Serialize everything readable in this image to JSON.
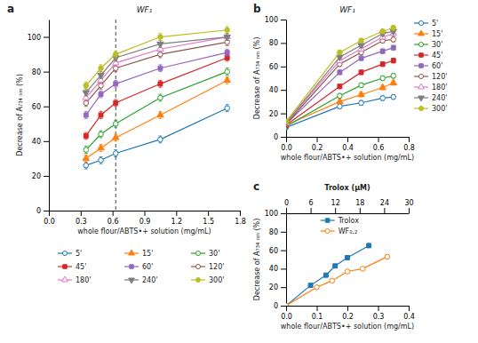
{
  "chart_data": [
    {
      "type": "line",
      "title": "WF₁",
      "panel_label": "a",
      "xlabel": "whole flour/ABTS•+ solution (mg/mL)",
      "ylabel": "Decrease of A₇₃₄ ₙₘ (%)",
      "xlim": [
        0.0,
        1.8
      ],
      "ylim": [
        0,
        110
      ],
      "xticks": [
        {
          "value": 0.0,
          "label": "0.0"
        },
        0.3,
        0.6,
        0.9,
        1.2,
        1.5,
        1.8
      ],
      "yticks": [
        0,
        20,
        40,
        60,
        80,
        100
      ],
      "grid": false,
      "legend": "bottom",
      "reference_lines": [
        {
          "x": 0.63,
          "line_style": "dashed"
        }
      ],
      "x": [
        0.35,
        0.49,
        0.63,
        1.05,
        1.68
      ],
      "series": [
        {
          "name": "5'",
          "marker": "circle-open",
          "values": [
            26,
            29,
            33,
            41,
            59
          ],
          "errors": [
            2.0,
            2.0,
            2.0,
            2.0,
            2.0
          ]
        },
        {
          "name": "15'",
          "marker": "triangle-up",
          "values": [
            30,
            36,
            42,
            55,
            75
          ],
          "errors": [
            2.0,
            2.0,
            2.0,
            2.0,
            2.0
          ]
        },
        {
          "name": "30'",
          "marker": "circle-open",
          "values": [
            35,
            44,
            50,
            65,
            80
          ],
          "errors": [
            2.0,
            2.0,
            2.0,
            2.0,
            2.0
          ]
        },
        {
          "name": "45'",
          "marker": "square",
          "values": [
            43,
            55,
            62,
            73,
            88
          ],
          "errors": [
            2.0,
            2.0,
            2.0,
            2.0,
            2.0
          ]
        },
        {
          "name": "60'",
          "marker": "square",
          "values": [
            55,
            67,
            73,
            82,
            91
          ],
          "errors": [
            2.0,
            2.0,
            2.0,
            2.0,
            2.0
          ]
        },
        {
          "name": "120'",
          "marker": "circle-open",
          "values": [
            62,
            72,
            82,
            90,
            97
          ],
          "errors": [
            2.0,
            2.0,
            2.0,
            2.0,
            2.0
          ]
        },
        {
          "name": "180'",
          "marker": "triangle-up-open",
          "values": [
            65,
            75,
            85,
            93,
            100
          ],
          "errors": [
            2.0,
            2.0,
            2.0,
            2.0,
            2.0
          ]
        },
        {
          "name": "240'",
          "marker": "triangle-down",
          "values": [
            68,
            78,
            88,
            96,
            100
          ],
          "errors": [
            2.0,
            2.0,
            2.0,
            2.0,
            2.0
          ]
        },
        {
          "name": "300'",
          "marker": "circle",
          "values": [
            72,
            82,
            90,
            100,
            104
          ],
          "errors": [
            2.0,
            2.0,
            2.0,
            2.0,
            2.0
          ]
        }
      ]
    },
    {
      "type": "line",
      "title": "WF₁",
      "panel_label": "b",
      "xlabel": "whole flour/ABTS•+ solution (mg/mL)",
      "ylabel": "Decrease of A₇₃₄ ₙₘ (%)",
      "xlim": [
        0.0,
        0.8
      ],
      "ylim": [
        0,
        100
      ],
      "xticks": [
        {
          "value": 0.0,
          "label": "0.0"
        },
        0.2,
        0.4,
        0.6,
        0.8
      ],
      "yticks": [
        0,
        20,
        40,
        60,
        80,
        100
      ],
      "grid": false,
      "legend": "right",
      "x": [
        0.0,
        0.35,
        0.49,
        0.63,
        0.7
      ],
      "series": [
        {
          "name": "5'",
          "marker": "circle-open",
          "values": [
            8,
            26,
            29,
            33,
            34
          ],
          "errors": [
            2.0,
            2.0,
            2.0,
            2.0,
            2.0
          ]
        },
        {
          "name": "15'",
          "marker": "triangle-up",
          "values": [
            10,
            30,
            36,
            42,
            46
          ],
          "errors": [
            2.0,
            2.0,
            2.0,
            2.0,
            2.0
          ]
        },
        {
          "name": "30'",
          "marker": "circle-open",
          "values": [
            9,
            35,
            44,
            50,
            52
          ],
          "errors": [
            2.0,
            2.0,
            2.0,
            2.0,
            2.0
          ]
        },
        {
          "name": "45'",
          "marker": "square",
          "values": [
            10,
            43,
            55,
            62,
            65
          ],
          "errors": [
            2.0,
            2.0,
            2.0,
            2.0,
            2.0
          ]
        },
        {
          "name": "60'",
          "marker": "square",
          "values": [
            11,
            55,
            67,
            73,
            76
          ],
          "errors": [
            2.0,
            2.0,
            2.0,
            2.0,
            2.0
          ]
        },
        {
          "name": "120'",
          "marker": "circle-open",
          "values": [
            11,
            62,
            72,
            82,
            83
          ],
          "errors": [
            2.0,
            2.0,
            2.0,
            2.0,
            2.0
          ]
        },
        {
          "name": "180'",
          "marker": "triangle-up-open",
          "values": [
            12,
            65,
            75,
            85,
            88
          ],
          "errors": [
            2.0,
            2.0,
            2.0,
            2.0,
            2.0
          ]
        },
        {
          "name": "240'",
          "marker": "triangle-down",
          "values": [
            12,
            68,
            78,
            88,
            90
          ],
          "errors": [
            2.0,
            2.0,
            2.0,
            2.0,
            2.0
          ]
        },
        {
          "name": "300'",
          "marker": "circle",
          "values": [
            13,
            72,
            82,
            90,
            93
          ],
          "errors": [
            2.0,
            2.0,
            2.0,
            2.0,
            2.0
          ]
        }
      ]
    },
    {
      "type": "line",
      "panel_label": "c",
      "xlabel": "whole flour/ABTS•+ solution (mg/mL)",
      "ylabel": "Decrease of A₇₃₄ ₙₘ (%)",
      "x2label": "Trolox (μM)",
      "xlim": [
        0.0,
        0.4
      ],
      "ylim": [
        0,
        100
      ],
      "xticks": [
        {
          "value": 0.0,
          "label": "0.0"
        },
        0.1,
        0.2,
        0.3,
        0.4
      ],
      "yticks": [
        0,
        20,
        40,
        60,
        80,
        100
      ],
      "x2lim": [
        0,
        30
      ],
      "x2ticks": [
        0,
        6,
        12,
        18,
        24,
        30
      ],
      "grid": false,
      "legend": "upper left",
      "series": [
        {
          "name": "Trolox",
          "marker": "square",
          "x": [
            0.0,
            0.08,
            0.13,
            0.16,
            0.2,
            0.27
          ],
          "values": [
            0,
            22,
            33,
            43,
            52,
            65
          ],
          "errors": [
            0,
            1.5,
            1.5,
            1.5,
            2,
            2
          ]
        },
        {
          "name": "WF₀.₂",
          "marker": "circle-open",
          "x": [
            0.0,
            0.1,
            0.15,
            0.2,
            0.25,
            0.33
          ],
          "values": [
            0,
            20,
            27,
            37,
            40,
            53
          ],
          "errors": [
            0,
            1.5,
            1.5,
            2,
            1.5,
            2
          ]
        }
      ]
    }
  ]
}
